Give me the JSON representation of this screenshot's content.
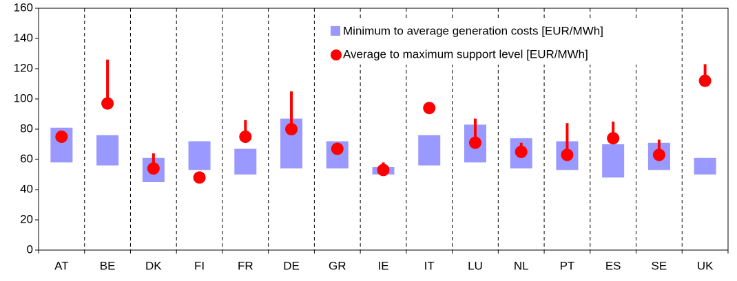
{
  "chart_data": {
    "type": "range",
    "categories": [
      "AT",
      "BE",
      "DK",
      "FI",
      "FR",
      "DE",
      "GR",
      "IE",
      "IT",
      "LU",
      "NL",
      "PT",
      "ES",
      "SE",
      "UK"
    ],
    "series": [
      {
        "name": "Minimum to average generation costs [EUR/MWh]",
        "color": "#9999ff",
        "low": [
          58,
          56,
          45,
          53,
          50,
          54,
          54,
          50,
          56,
          58,
          54,
          53,
          48,
          53,
          50
        ],
        "high": [
          81,
          76,
          61,
          72,
          67,
          87,
          72,
          55,
          76,
          83,
          74,
          72,
          70,
          71,
          61
        ]
      },
      {
        "name": "Average to maximum support level [EUR/MWh]",
        "color": "#ff0000",
        "values": [
          75,
          97,
          54,
          48,
          75,
          80,
          67,
          53,
          94,
          71,
          65,
          63,
          74,
          63,
          112
        ],
        "max": [
          null,
          126,
          64,
          null,
          86,
          105,
          null,
          58,
          null,
          87,
          71,
          84,
          85,
          73,
          123
        ]
      }
    ],
    "ylim": [
      0,
      160
    ],
    "yticks": [
      0,
      20,
      40,
      60,
      80,
      100,
      120,
      140,
      160
    ]
  }
}
